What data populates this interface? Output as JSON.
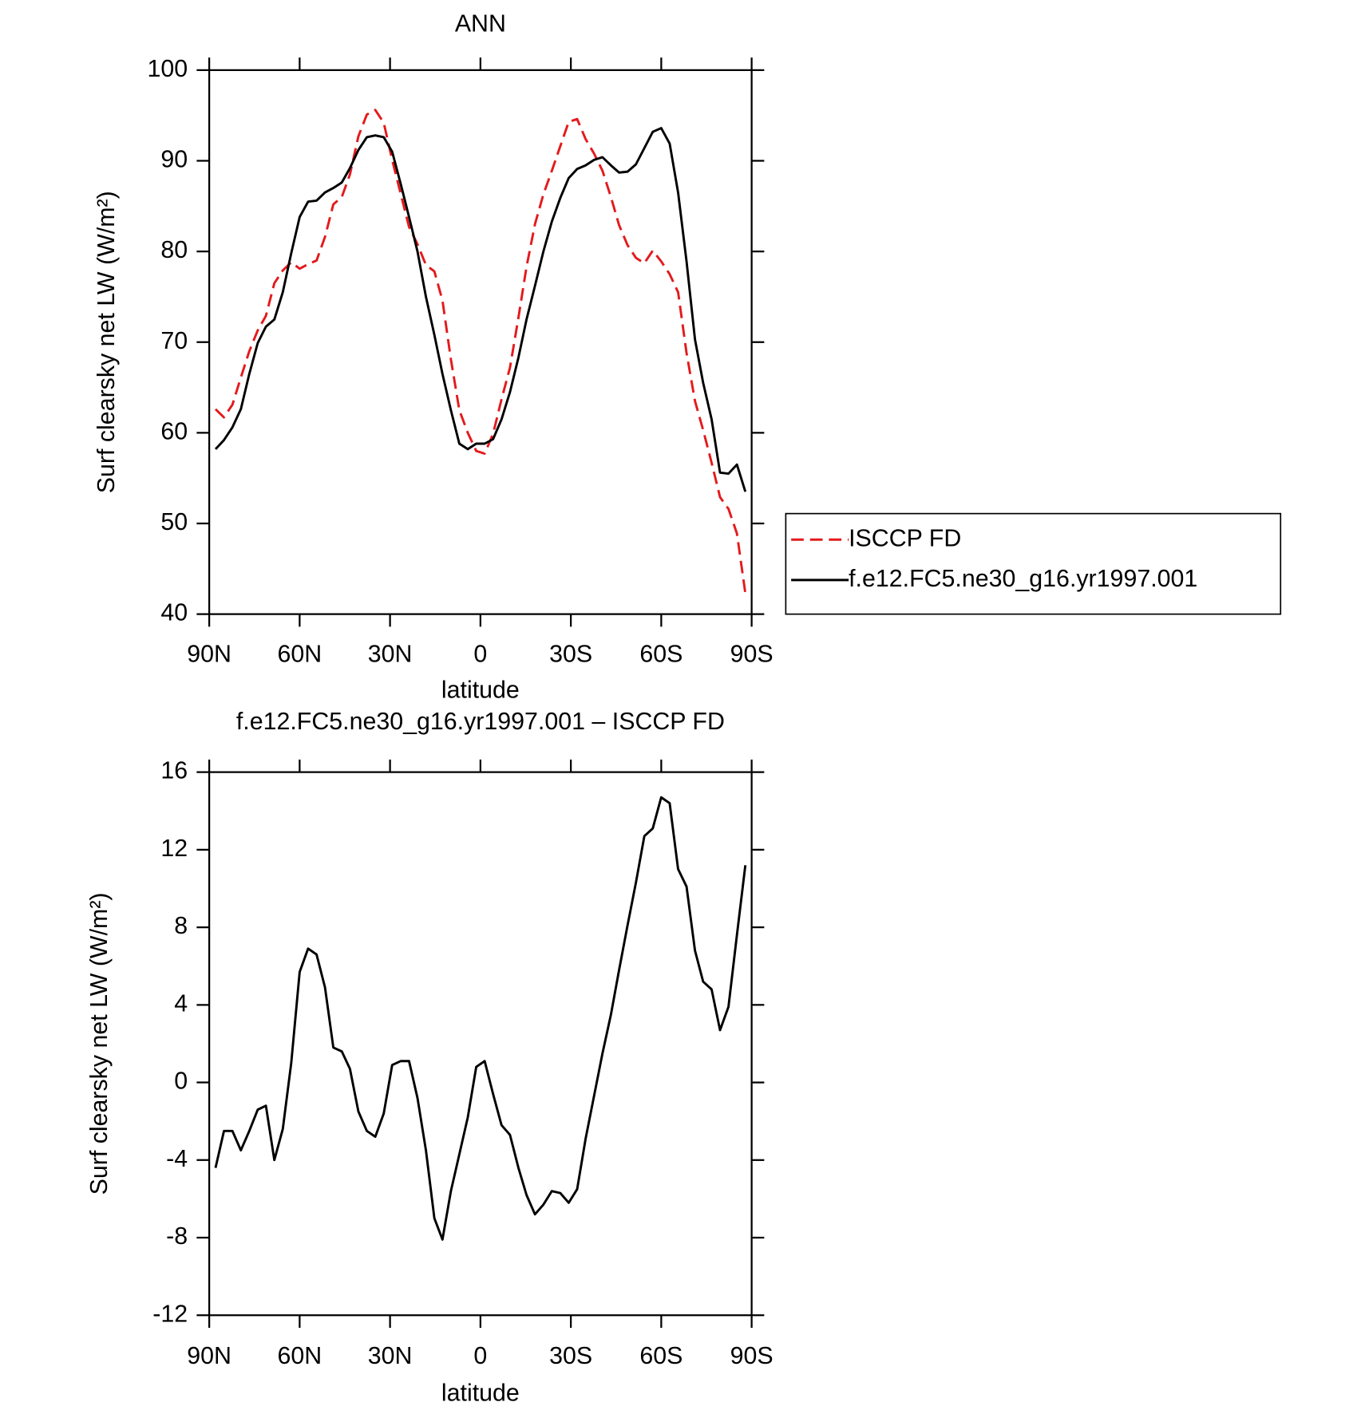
{
  "chart_data": [
    {
      "type": "line",
      "title": "ANN",
      "xlabel": "latitude",
      "ylabel": "Surf clearsky net LW (W/m²)",
      "x": [
        87.9,
        85.1,
        82.3,
        79.5,
        76.7,
        73.9,
        71.2,
        68.4,
        65.6,
        62.8,
        60.0,
        57.2,
        54.4,
        51.6,
        48.8,
        46.0,
        43.3,
        40.5,
        37.7,
        34.9,
        32.1,
        29.3,
        26.5,
        23.7,
        20.9,
        18.1,
        15.3,
        12.6,
        9.8,
        7.0,
        4.2,
        1.4,
        -1.4,
        -4.2,
        -7.0,
        -9.8,
        -12.6,
        -15.3,
        -18.1,
        -20.9,
        -23.7,
        -26.5,
        -29.3,
        -32.1,
        -34.9,
        -37.7,
        -40.5,
        -43.3,
        -46.0,
        -48.8,
        -51.6,
        -54.4,
        -57.2,
        -60.0,
        -62.8,
        -65.6,
        -68.4,
        -71.2,
        -73.9,
        -76.7,
        -79.5,
        -82.3,
        -85.1,
        -87.9
      ],
      "series": [
        {
          "name": "ISCCP FD",
          "color": "#e41a1c",
          "dashed": true,
          "values": [
            62.6,
            61.7,
            63.1,
            66.1,
            69.0,
            71.3,
            72.9,
            76.5,
            77.9,
            78.8,
            78.1,
            78.6,
            79.0,
            81.6,
            85.2,
            86.0,
            88.5,
            92.7,
            95.1,
            95.6,
            94.2,
            90.1,
            86.4,
            82.7,
            80.8,
            78.5,
            77.8,
            74.6,
            68.1,
            62.5,
            60.0,
            58.0,
            57.7,
            59.9,
            63.7,
            67.2,
            72.7,
            78.3,
            83.0,
            86.3,
            88.9,
            91.6,
            94.3,
            94.6,
            92.4,
            90.8,
            88.9,
            86.0,
            82.9,
            80.7,
            79.3,
            78.7,
            80.1,
            78.9,
            77.5,
            75.5,
            68.8,
            63.5,
            60.3,
            56.7,
            52.9,
            51.6,
            48.9,
            42.3
          ]
        },
        {
          "name": "f.e12.FC5.ne30_g16.yr1997.001",
          "color": "#000000",
          "dashed": false,
          "values": [
            58.2,
            59.2,
            60.6,
            62.6,
            66.5,
            69.9,
            71.7,
            72.5,
            75.5,
            79.8,
            83.8,
            85.5,
            85.6,
            86.5,
            87.0,
            87.6,
            89.2,
            91.2,
            92.6,
            92.8,
            92.6,
            91.0,
            87.5,
            83.8,
            80.0,
            75.0,
            70.8,
            66.5,
            62.5,
            58.8,
            58.2,
            58.8,
            58.8,
            59.3,
            61.5,
            64.5,
            68.3,
            72.5,
            76.2,
            80.0,
            83.3,
            85.9,
            88.1,
            89.1,
            89.5,
            90.1,
            90.4,
            89.5,
            88.7,
            88.8,
            89.6,
            91.4,
            93.2,
            93.6,
            91.9,
            86.5,
            78.9,
            70.3,
            65.5,
            61.5,
            55.6,
            55.5,
            56.5,
            53.5
          ]
        }
      ],
      "xlim": [
        90,
        -90
      ],
      "xticks": [
        {
          "value": 90,
          "label": "90N"
        },
        {
          "value": 60,
          "label": "60N"
        },
        {
          "value": 30,
          "label": "30N"
        },
        0,
        {
          "value": -30,
          "label": "30S"
        },
        {
          "value": -60,
          "label": "60S"
        },
        {
          "value": -90,
          "label": "90S"
        }
      ],
      "ylim": [
        40,
        100
      ],
      "yticks": [
        40,
        50,
        60,
        70,
        80,
        90,
        100
      ],
      "legend": "right"
    },
    {
      "type": "line",
      "title": "f.e12.FC5.ne30_g16.yr1997.001 – ISCCP FD",
      "xlabel": "latitude",
      "ylabel": "Surf clearsky net LW (W/m²)",
      "x": [
        87.9,
        85.1,
        82.3,
        79.5,
        76.7,
        73.9,
        71.2,
        68.4,
        65.6,
        62.8,
        60.0,
        57.2,
        54.4,
        51.6,
        48.8,
        46.0,
        43.3,
        40.5,
        37.7,
        34.9,
        32.1,
        29.3,
        26.5,
        23.7,
        20.9,
        18.1,
        15.3,
        12.6,
        9.8,
        7.0,
        4.2,
        1.4,
        -1.4,
        -4.2,
        -7.0,
        -9.8,
        -12.6,
        -15.3,
        -18.1,
        -20.9,
        -23.7,
        -26.5,
        -29.3,
        -32.1,
        -34.9,
        -37.7,
        -40.5,
        -43.3,
        -46.0,
        -48.8,
        -51.6,
        -54.4,
        -57.2,
        -60.0,
        -62.8,
        -65.6,
        -68.4,
        -71.2,
        -73.9,
        -76.7,
        -79.5,
        -82.3,
        -85.1,
        -87.9
      ],
      "series": [
        {
          "color": "#000000",
          "dashed": false,
          "values": [
            -4.4,
            -2.5,
            -2.5,
            -3.5,
            -2.5,
            -1.4,
            -1.2,
            -4.0,
            -2.4,
            1.0,
            5.7,
            6.9,
            6.6,
            4.9,
            1.8,
            1.6,
            0.7,
            -1.5,
            -2.5,
            -2.8,
            -1.6,
            0.9,
            1.1,
            1.1,
            -0.8,
            -3.5,
            -7.0,
            -8.1,
            -5.6,
            -3.7,
            -1.8,
            0.8,
            1.1,
            -0.6,
            -2.2,
            -2.7,
            -4.4,
            -5.8,
            -6.8,
            -6.3,
            -5.6,
            -5.7,
            -6.2,
            -5.5,
            -2.9,
            -0.7,
            1.5,
            3.5,
            5.8,
            8.1,
            10.3,
            12.7,
            13.1,
            14.7,
            14.4,
            11.0,
            10.1,
            6.8,
            5.2,
            4.8,
            2.7,
            3.9,
            7.6,
            11.2
          ]
        }
      ],
      "xlim": [
        90,
        -90
      ],
      "xticks": [
        {
          "value": 90,
          "label": "90N"
        },
        {
          "value": 60,
          "label": "60N"
        },
        {
          "value": 30,
          "label": "30N"
        },
        0,
        {
          "value": -30,
          "label": "30S"
        },
        {
          "value": -60,
          "label": "60S"
        },
        {
          "value": -90,
          "label": "90S"
        }
      ],
      "ylim": [
        -12,
        16
      ],
      "yticks": [
        -12,
        -8,
        -4,
        0,
        4,
        8,
        12,
        16
      ]
    }
  ]
}
